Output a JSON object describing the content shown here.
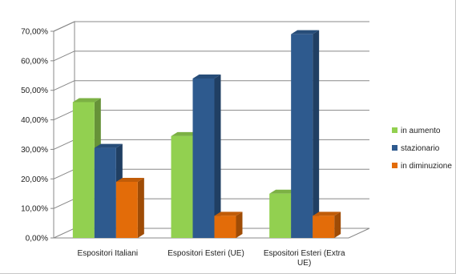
{
  "chart_data": {
    "type": "bar",
    "title": "",
    "xlabel": "",
    "ylabel": "",
    "ylim": [
      0,
      70
    ],
    "y_tick_step": 10,
    "y_tick_format": "percent_2_decimal_comma",
    "grid": true,
    "legend_position": "right",
    "categories": [
      [
        "Espositori Italiani"
      ],
      [
        "Espositori Esteri (UE)"
      ],
      [
        "Espositori Esteri (Extra",
        "UE)"
      ]
    ],
    "series": [
      {
        "name": "in aumento",
        "color": "#92d050",
        "values": [
          46,
          34.5,
          15
        ]
      },
      {
        "name": "stazionario",
        "color": "#2e5a8e",
        "values": [
          30.5,
          54,
          69
        ]
      },
      {
        "name": "in diminuzione",
        "color": "#e36c09",
        "values": [
          19,
          7.5,
          7.5
        ]
      }
    ]
  }
}
